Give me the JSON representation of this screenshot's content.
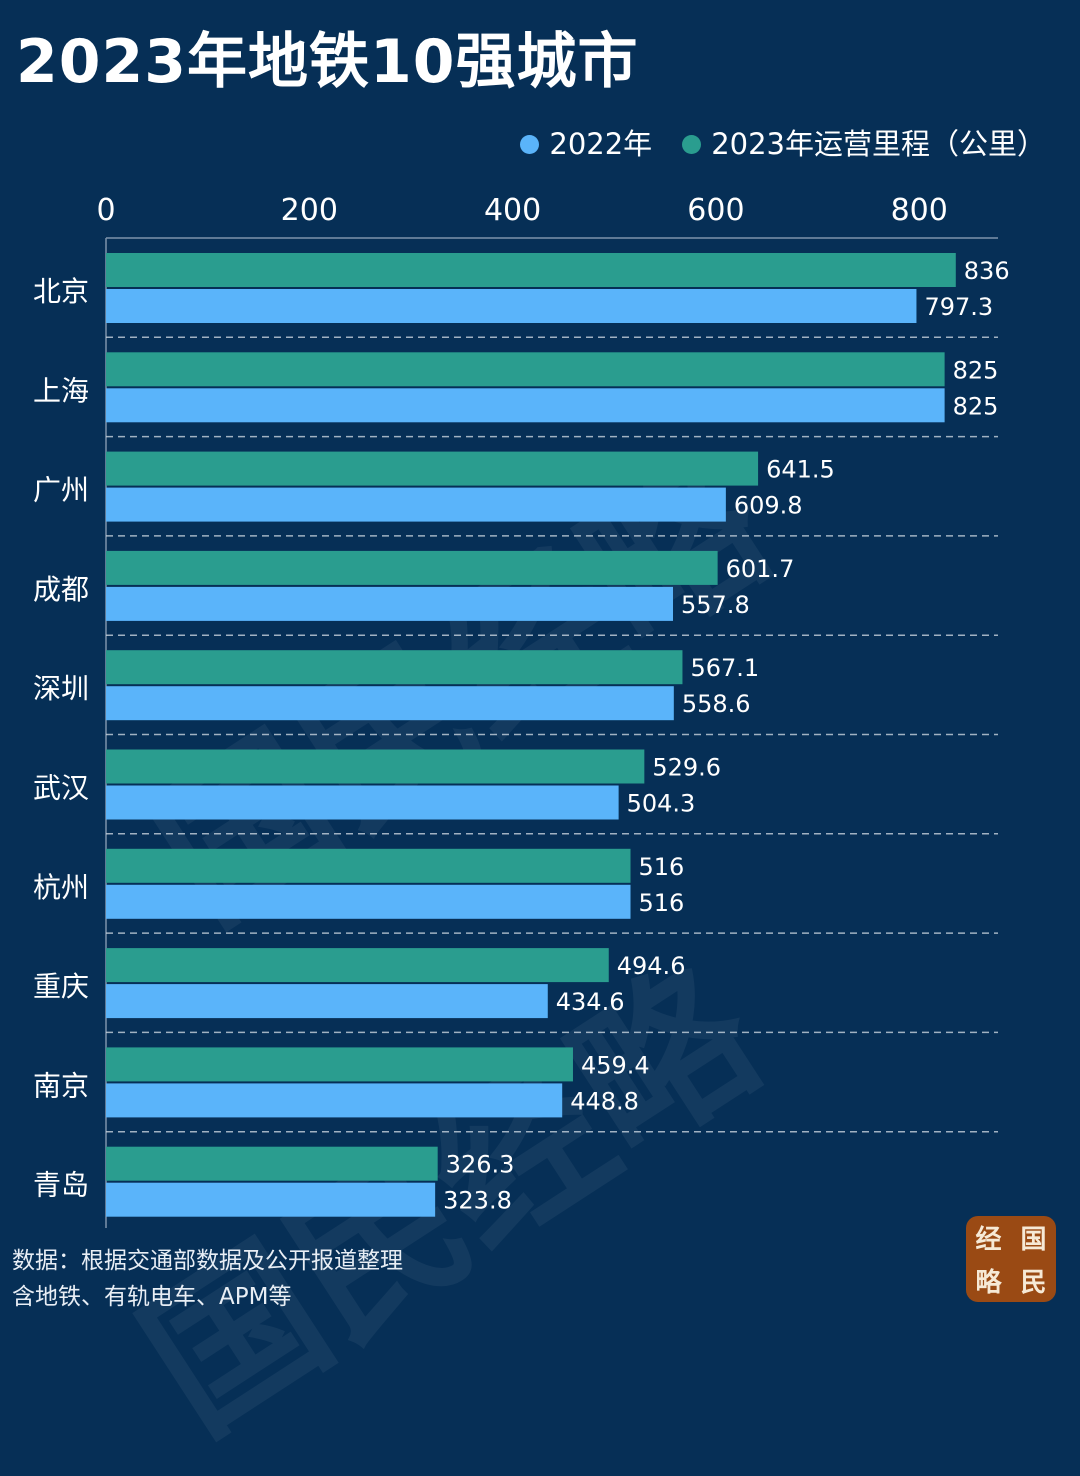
{
  "title": "2023年地铁10强城市",
  "legend": [
    {
      "label": "2022年",
      "color": "#5ab4fa"
    },
    {
      "label": "2023年运营里程（公里）",
      "color": "#2a9d8f"
    }
  ],
  "colors": {
    "background": "#062f56",
    "series_2022": "#5ab4fa",
    "series_2023": "#2a9d8f"
  },
  "chart_data": {
    "type": "bar",
    "orientation": "horizontal",
    "title": "2023年地铁10强城市",
    "categories": [
      "北京",
      "上海",
      "广州",
      "成都",
      "深圳",
      "武汉",
      "杭州",
      "重庆",
      "南京",
      "青岛"
    ],
    "series": [
      {
        "name": "2023年运营里程（公里）",
        "color": "#2a9d8f",
        "values": [
          836,
          825,
          641.5,
          601.7,
          567.1,
          529.6,
          516,
          494.6,
          459.4,
          326.3
        ],
        "labels": [
          "836",
          "825",
          "641.5",
          "601.7",
          "567.1",
          "529.6",
          "516",
          "494.6",
          "459.4",
          "326.3"
        ]
      },
      {
        "name": "2022年",
        "color": "#5ab4fa",
        "values": [
          797.3,
          825,
          609.8,
          557.8,
          558.6,
          504.3,
          516,
          434.6,
          448.8,
          323.8
        ],
        "labels": [
          "797.3",
          "825",
          "609.8",
          "557.8",
          "558.6",
          "504.3",
          "516",
          "434.6",
          "448.8",
          "323.8"
        ]
      }
    ],
    "xticks": [
      "0",
      "200",
      "400",
      "600",
      "800"
    ],
    "xtick_values": [
      0,
      200,
      400,
      600,
      800
    ],
    "xlim": [
      0,
      880
    ],
    "axis_position": "top",
    "grid": "dashed separators between categories",
    "legend_position": "top-right"
  },
  "footer": {
    "source_line1": "数据：根据交通部数据及公开报道整理",
    "source_line2": "含地铁、有轨电车、APM等"
  },
  "watermark": {
    "text": "国民经略"
  },
  "logo": {
    "chars": [
      "经",
      "国",
      "略",
      "民"
    ]
  }
}
